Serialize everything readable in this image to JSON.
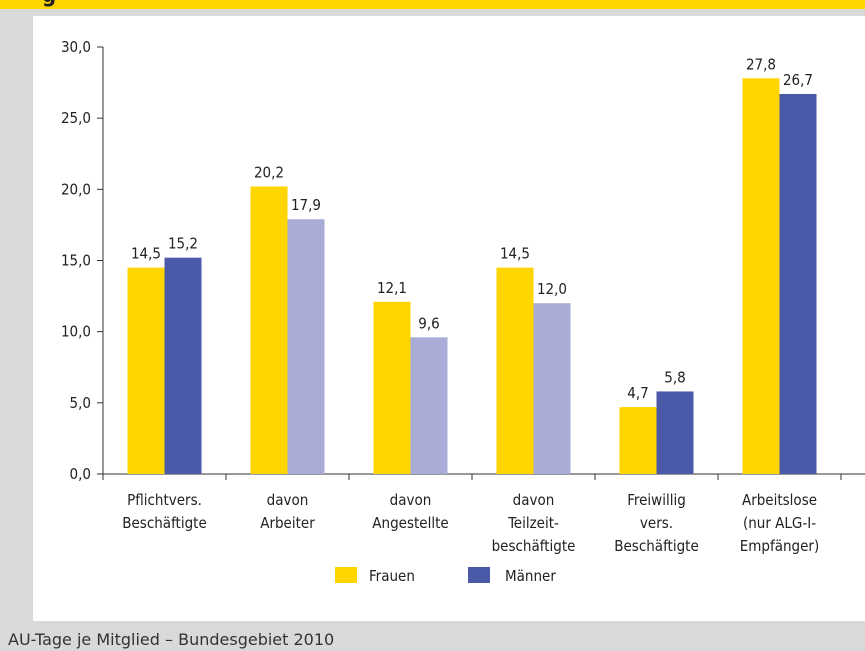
{
  "header": {
    "title_fragment": "g"
  },
  "caption": "AU-Tage je Mitglied – Bundesgebiet 2010",
  "colors": {
    "frauen": "#ffd500",
    "maenner": "#4a5aa8",
    "maenner_light": "#a8acd6",
    "accent_bar": "#ffd500",
    "background": "#d9d9d9"
  },
  "chart_data": {
    "type": "bar",
    "title": "",
    "xlabel": "",
    "ylabel": "",
    "ylim": [
      0,
      30
    ],
    "yticks": [
      "0,0",
      "5,0",
      "10,0",
      "15,0",
      "20,0",
      "25,0",
      "30,0"
    ],
    "grid": false,
    "legend_placement": "bottom",
    "categories": [
      [
        "Pflichtvers.",
        "Beschäftigte"
      ],
      [
        "davon",
        "Arbeiter"
      ],
      [
        "davon",
        "Angestellte"
      ],
      [
        "davon",
        "Teilzeit-",
        "beschäftigte"
      ],
      [
        "Freiwillig",
        "vers.",
        "Beschäftigte"
      ],
      [
        "Arbeitslose",
        "(nur ALG-I-",
        "Empfänger)"
      ]
    ],
    "series": [
      {
        "name": "Frauen",
        "values": [
          14.5,
          20.2,
          12.1,
          14.5,
          4.7,
          27.8
        ],
        "labels": [
          "14,5",
          "20,2",
          "12,1",
          "14,5",
          "4,7",
          "27,8"
        ]
      },
      {
        "name": "Männer",
        "values": [
          15.2,
          17.9,
          9.6,
          12.0,
          5.8,
          26.7
        ],
        "labels": [
          "15,2",
          "17,9",
          "9,6",
          "12,0",
          "5,8",
          "26,7"
        ],
        "light_categories": [
          1,
          2,
          3
        ]
      }
    ]
  }
}
